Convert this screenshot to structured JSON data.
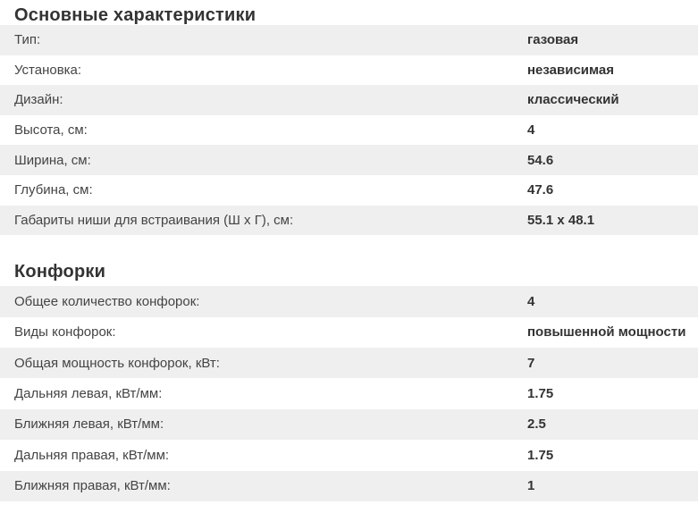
{
  "colors": {
    "row_alt_bg": "#efefef",
    "label_color": "#444444",
    "value_color": "#333333",
    "heading_color": "#333333",
    "page_bg": "#ffffff"
  },
  "sections": [
    {
      "title": "Основные характеристики",
      "rows": [
        {
          "label": "Тип:",
          "value": "газовая"
        },
        {
          "label": "Установка:",
          "value": "независимая"
        },
        {
          "label": "Дизайн:",
          "value": "классический"
        },
        {
          "label": "Высота, см:",
          "value": "4"
        },
        {
          "label": "Ширина, см:",
          "value": "54.6"
        },
        {
          "label": "Глубина, см:",
          "value": "47.6"
        },
        {
          "label": "Габариты ниши для встраивания (Ш х Г), см:",
          "value": "55.1 x 48.1"
        }
      ]
    },
    {
      "title": "Конфорки",
      "rows": [
        {
          "label": "Общее количество конфорок:",
          "value": "4"
        },
        {
          "label": "Виды конфорок:",
          "value": "повышенной мощности"
        },
        {
          "label": "Общая мощность конфорок, кВт:",
          "value": "7"
        },
        {
          "label": "Дальняя левая, кВт/мм:",
          "value": "1.75"
        },
        {
          "label": "Ближняя левая, кВт/мм:",
          "value": "2.5"
        },
        {
          "label": "Дальняя правая, кВт/мм:",
          "value": "1.75"
        },
        {
          "label": "Ближняя правая, кВт/мм:",
          "value": "1"
        }
      ]
    }
  ]
}
